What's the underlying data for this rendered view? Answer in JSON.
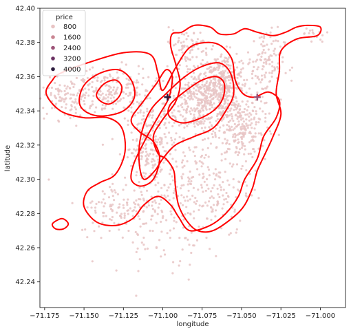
{
  "chart_data": {
    "type": "scatter",
    "xlabel": "longitude",
    "ylabel": "latitude",
    "xlim": [
      -71.178,
      -70.984
    ],
    "ylim": [
      42.225,
      42.4
    ],
    "xticks": [
      -71.175,
      -71.15,
      -71.125,
      -71.1,
      -71.075,
      -71.05,
      -71.025,
      -71.0
    ],
    "xtick_labels": [
      "−71.175",
      "−71.150",
      "−71.125",
      "−71.100",
      "−71.075",
      "−71.050",
      "−71.025",
      "−71.000"
    ],
    "yticks": [
      42.24,
      42.26,
      42.28,
      42.3,
      42.32,
      42.34,
      42.36,
      42.38,
      42.4
    ],
    "ytick_labels": [
      "42.24",
      "42.26",
      "42.28",
      "42.30",
      "42.32",
      "42.34",
      "42.36",
      "42.38",
      "42.40"
    ],
    "grid": false,
    "legend": {
      "title": "price",
      "placement": "top-left",
      "entries": [
        {
          "label": "800",
          "color": "#e8c4c4"
        },
        {
          "label": "1600",
          "color": "#c98592"
        },
        {
          "label": "2400",
          "color": "#9c5277"
        },
        {
          "label": "3200",
          "color": "#6b3163"
        },
        {
          "label": "4000",
          "color": "#2b1a3d"
        }
      ]
    },
    "point_color": "#e8c4c4",
    "point_clusters": [
      {
        "cx": -71.075,
        "cy": 42.345,
        "sx": 0.012,
        "sy": 0.01,
        "n": 420
      },
      {
        "cx": -71.062,
        "cy": 42.358,
        "sx": 0.008,
        "sy": 0.008,
        "n": 260
      },
      {
        "cx": -71.135,
        "cy": 42.352,
        "sx": 0.014,
        "sy": 0.007,
        "n": 200
      },
      {
        "cx": -71.16,
        "cy": 42.347,
        "sx": 0.01,
        "sy": 0.006,
        "n": 100
      },
      {
        "cx": -71.108,
        "cy": 42.318,
        "sx": 0.008,
        "sy": 0.014,
        "n": 240
      },
      {
        "cx": -71.05,
        "cy": 42.33,
        "sx": 0.008,
        "sy": 0.01,
        "n": 220
      },
      {
        "cx": -71.035,
        "cy": 42.368,
        "sx": 0.006,
        "sy": 0.01,
        "n": 110
      },
      {
        "cx": -71.075,
        "cy": 42.295,
        "sx": 0.016,
        "sy": 0.014,
        "n": 220
      },
      {
        "cx": -71.125,
        "cy": 42.283,
        "sx": 0.014,
        "sy": 0.008,
        "n": 110
      },
      {
        "cx": -71.085,
        "cy": 42.378,
        "sx": 0.008,
        "sy": 0.005,
        "n": 70
      },
      {
        "cx": -71.1,
        "cy": 42.268,
        "sx": 0.016,
        "sy": 0.012,
        "n": 70
      },
      {
        "cx": -71.005,
        "cy": 42.385,
        "sx": 0.005,
        "sy": 0.003,
        "n": 18
      }
    ],
    "markers": [
      {
        "x": -71.097,
        "y": 42.348,
        "color": "#2b1a3d"
      },
      {
        "x": -71.04,
        "y": 42.348,
        "color": "#9c5277"
      }
    ],
    "kde_color": "#ff0000",
    "kde_contours": [
      [
        [
          -71.165,
          42.362
        ],
        [
          -71.148,
          42.368
        ],
        [
          -71.125,
          42.374
        ],
        [
          -71.108,
          42.373
        ],
        [
          -71.103,
          42.362
        ],
        [
          -71.1,
          42.352
        ],
        [
          -71.092,
          42.365
        ],
        [
          -71.083,
          42.377
        ],
        [
          -71.072,
          42.38
        ],
        [
          -71.063,
          42.378
        ],
        [
          -71.056,
          42.37
        ],
        [
          -71.054,
          42.358
        ],
        [
          -71.049,
          42.35
        ],
        [
          -71.042,
          42.348
        ],
        [
          -71.033,
          42.351
        ],
        [
          -71.026,
          42.346
        ],
        [
          -71.028,
          42.336
        ],
        [
          -71.036,
          42.325
        ],
        [
          -71.04,
          42.312
        ],
        [
          -71.048,
          42.3
        ],
        [
          -71.052,
          42.29
        ],
        [
          -71.06,
          42.28
        ],
        [
          -71.07,
          42.273
        ],
        [
          -71.083,
          42.27
        ],
        [
          -71.09,
          42.278
        ],
        [
          -71.095,
          42.285
        ],
        [
          -71.103,
          42.29
        ],
        [
          -71.112,
          42.285
        ],
        [
          -71.119,
          42.277
        ],
        [
          -71.13,
          42.273
        ],
        [
          -71.142,
          42.275
        ],
        [
          -71.15,
          42.284
        ],
        [
          -71.148,
          42.293
        ],
        [
          -71.14,
          42.298
        ],
        [
          -71.13,
          42.303
        ],
        [
          -71.124,
          42.316
        ],
        [
          -71.126,
          42.33
        ],
        [
          -71.135,
          42.336
        ],
        [
          -71.15,
          42.336
        ],
        [
          -71.165,
          42.34
        ],
        [
          -71.174,
          42.35
        ],
        [
          -71.17,
          42.358
        ]
      ],
      [
        [
          -71.088,
          42.386
        ],
        [
          -71.08,
          42.39
        ],
        [
          -71.07,
          42.389
        ],
        [
          -71.064,
          42.385
        ],
        [
          -71.055,
          42.385
        ],
        [
          -71.048,
          42.388
        ],
        [
          -71.04,
          42.386
        ],
        [
          -71.03,
          42.384
        ],
        [
          -71.022,
          42.386
        ],
        [
          -71.015,
          42.389
        ],
        [
          -71.008,
          42.39
        ],
        [
          -71.0,
          42.389
        ],
        [
          -71.002,
          42.384
        ],
        [
          -71.015,
          42.382
        ],
        [
          -71.025,
          42.375
        ],
        [
          -71.026,
          42.363
        ],
        [
          -71.028,
          42.35
        ],
        [
          -71.025,
          42.338
        ],
        [
          -71.03,
          42.325
        ],
        [
          -71.035,
          42.315
        ],
        [
          -71.04,
          42.305
        ],
        [
          -71.043,
          42.295
        ],
        [
          -71.048,
          42.285
        ],
        [
          -71.055,
          42.278
        ],
        [
          -71.068,
          42.27
        ],
        [
          -71.078,
          42.27
        ],
        [
          -71.085,
          42.276
        ],
        [
          -71.09,
          42.285
        ],
        [
          -71.092,
          42.296
        ],
        [
          -71.093,
          42.305
        ],
        [
          -71.098,
          42.312
        ],
        [
          -71.103,
          42.315
        ],
        [
          -71.106,
          42.325
        ],
        [
          -71.1,
          42.335
        ],
        [
          -71.092,
          42.345
        ],
        [
          -71.089,
          42.356
        ],
        [
          -71.092,
          42.368
        ],
        [
          -71.095,
          42.378
        ],
        [
          -71.094,
          42.385
        ]
      ],
      [
        [
          -71.108,
          42.34
        ],
        [
          -71.098,
          42.35
        ],
        [
          -71.086,
          42.36
        ],
        [
          -71.075,
          42.366
        ],
        [
          -71.064,
          42.368
        ],
        [
          -71.057,
          42.362
        ],
        [
          -71.055,
          42.35
        ],
        [
          -71.06,
          42.34
        ],
        [
          -71.068,
          42.33
        ],
        [
          -71.08,
          42.325
        ],
        [
          -71.092,
          42.32
        ],
        [
          -71.1,
          42.312
        ],
        [
          -71.105,
          42.305
        ],
        [
          -71.112,
          42.3
        ],
        [
          -71.115,
          42.31
        ],
        [
          -71.114,
          42.325
        ]
      ],
      [
        [
          -71.095,
          42.344
        ],
        [
          -71.085,
          42.352
        ],
        [
          -71.075,
          42.358
        ],
        [
          -71.066,
          42.36
        ],
        [
          -71.061,
          42.356
        ],
        [
          -71.062,
          42.347
        ],
        [
          -71.068,
          42.34
        ],
        [
          -71.078,
          42.335
        ],
        [
          -71.088,
          42.333
        ],
        [
          -71.096,
          42.337
        ]
      ],
      [
        [
          -71.153,
          42.345
        ],
        [
          -71.15,
          42.355
        ],
        [
          -71.14,
          42.362
        ],
        [
          -71.128,
          42.364
        ],
        [
          -71.12,
          42.358
        ],
        [
          -71.118,
          42.348
        ],
        [
          -71.125,
          42.34
        ],
        [
          -71.138,
          42.337
        ],
        [
          -71.148,
          42.339
        ]
      ],
      [
        [
          -71.142,
          42.35
        ],
        [
          -71.137,
          42.356
        ],
        [
          -71.13,
          42.358
        ],
        [
          -71.126,
          42.354
        ],
        [
          -71.128,
          42.348
        ],
        [
          -71.134,
          42.344
        ],
        [
          -71.14,
          42.346
        ]
      ],
      [
        [
          -71.12,
          42.335
        ],
        [
          -71.112,
          42.346
        ],
        [
          -71.104,
          42.356
        ],
        [
          -71.098,
          42.364
        ],
        [
          -71.094,
          42.36
        ],
        [
          -71.096,
          42.348
        ],
        [
          -71.102,
          42.338
        ],
        [
          -71.11,
          42.325
        ],
        [
          -71.118,
          42.31
        ],
        [
          -71.12,
          42.3
        ],
        [
          -71.114,
          42.296
        ],
        [
          -71.106,
          42.3
        ],
        [
          -71.102,
          42.312
        ],
        [
          -71.106,
          42.322
        ],
        [
          -71.115,
          42.328
        ]
      ],
      [
        [
          -71.17,
          42.274
        ],
        [
          -71.164,
          42.277
        ],
        [
          -71.16,
          42.274
        ],
        [
          -71.163,
          42.271
        ],
        [
          -71.168,
          42.271
        ]
      ]
    ]
  }
}
